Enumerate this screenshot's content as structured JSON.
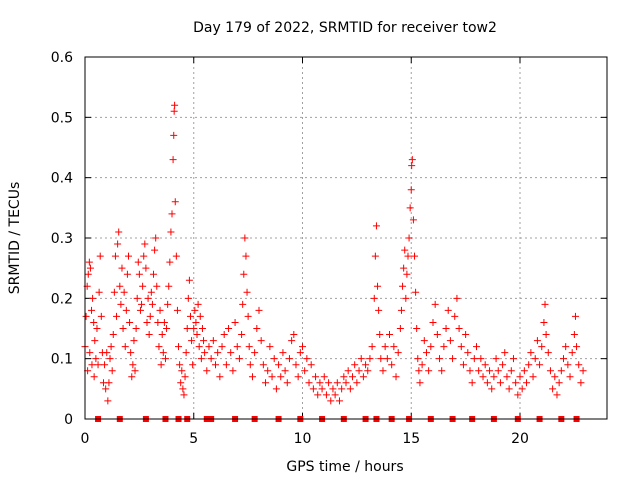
{
  "chart_data": {
    "type": "scatter",
    "title": "Day 179 of 2022, SRMTID for receiver tow2",
    "xlabel": "GPS time / hours",
    "ylabel": "SRMTID / TECUs",
    "xlim": [
      0,
      24
    ],
    "ylim": [
      0,
      0.6
    ],
    "xticks": [
      0,
      5,
      10,
      15,
      20
    ],
    "xtick_labels": [
      "0",
      "5",
      "10",
      "15",
      "20"
    ],
    "yticks": [
      0,
      0.1,
      0.2,
      0.3,
      0.4,
      0.5,
      0.6
    ],
    "ytick_labels": [
      "0",
      "0.1",
      "0.2",
      "0.3",
      "0.4",
      "0.5",
      "0.6"
    ],
    "grid": true,
    "marker": "+",
    "color": "#ff0000",
    "series": [
      {
        "name": "SRMTID",
        "points": [
          [
            0.0,
            0.12
          ],
          [
            0.05,
            0.17
          ],
          [
            0.1,
            0.22
          ],
          [
            0.12,
            0.08
          ],
          [
            0.15,
            0.24
          ],
          [
            0.2,
            0.26
          ],
          [
            0.22,
            0.11
          ],
          [
            0.25,
            0.25
          ],
          [
            0.3,
            0.18
          ],
          [
            0.32,
            0.09
          ],
          [
            0.35,
            0.2
          ],
          [
            0.4,
            0.16
          ],
          [
            0.42,
            0.07
          ],
          [
            0.45,
            0.13
          ],
          [
            0.5,
            0.1
          ],
          [
            0.55,
            0.15
          ],
          [
            0.6,
            0.09
          ],
          [
            0.65,
            0.21
          ],
          [
            0.7,
            0.27
          ],
          [
            0.75,
            0.17
          ],
          [
            0.8,
            0.11
          ],
          [
            0.85,
            0.06
          ],
          [
            0.9,
            0.09
          ],
          [
            0.95,
            0.05
          ],
          [
            1.0,
            0.11
          ],
          [
            1.05,
            0.03
          ],
          [
            1.1,
            0.06
          ],
          [
            1.15,
            0.1
          ],
          [
            1.2,
            0.12
          ],
          [
            1.25,
            0.08
          ],
          [
            1.3,
            0.14
          ],
          [
            1.35,
            0.21
          ],
          [
            1.4,
            0.27
          ],
          [
            1.45,
            0.17
          ],
          [
            1.5,
            0.29
          ],
          [
            1.55,
            0.31
          ],
          [
            1.6,
            0.22
          ],
          [
            1.65,
            0.19
          ],
          [
            1.7,
            0.25
          ],
          [
            1.75,
            0.15
          ],
          [
            1.8,
            0.21
          ],
          [
            1.85,
            0.12
          ],
          [
            1.9,
            0.18
          ],
          [
            1.95,
            0.24
          ],
          [
            2.0,
            0.27
          ],
          [
            2.05,
            0.16
          ],
          [
            2.1,
            0.11
          ],
          [
            2.15,
            0.07
          ],
          [
            2.2,
            0.09
          ],
          [
            2.25,
            0.13
          ],
          [
            2.3,
            0.08
          ],
          [
            2.35,
            0.15
          ],
          [
            2.4,
            0.2
          ],
          [
            2.45,
            0.26
          ],
          [
            2.5,
            0.24
          ],
          [
            2.55,
            0.18
          ],
          [
            2.6,
            0.19
          ],
          [
            2.65,
            0.22
          ],
          [
            2.7,
            0.27
          ],
          [
            2.75,
            0.29
          ],
          [
            2.8,
            0.25
          ],
          [
            2.85,
            0.16
          ],
          [
            2.9,
            0.2
          ],
          [
            2.95,
            0.14
          ],
          [
            3.0,
            0.17
          ],
          [
            3.05,
            0.21
          ],
          [
            3.1,
            0.19
          ],
          [
            3.15,
            0.24
          ],
          [
            3.2,
            0.28
          ],
          [
            3.25,
            0.3
          ],
          [
            3.3,
            0.22
          ],
          [
            3.35,
            0.16
          ],
          [
            3.4,
            0.12
          ],
          [
            3.45,
            0.18
          ],
          [
            3.5,
            0.09
          ],
          [
            3.55,
            0.14
          ],
          [
            3.6,
            0.11
          ],
          [
            3.65,
            0.16
          ],
          [
            3.7,
            0.1
          ],
          [
            3.75,
            0.15
          ],
          [
            3.8,
            0.19
          ],
          [
            3.85,
            0.22
          ],
          [
            3.9,
            0.26
          ],
          [
            3.95,
            0.31
          ],
          [
            4.0,
            0.34
          ],
          [
            4.05,
            0.43
          ],
          [
            4.08,
            0.47
          ],
          [
            4.1,
            0.51
          ],
          [
            4.12,
            0.52
          ],
          [
            4.15,
            0.36
          ],
          [
            4.2,
            0.27
          ],
          [
            4.25,
            0.18
          ],
          [
            4.3,
            0.12
          ],
          [
            4.35,
            0.09
          ],
          [
            4.4,
            0.06
          ],
          [
            4.45,
            0.08
          ],
          [
            4.5,
            0.05
          ],
          [
            4.55,
            0.04
          ],
          [
            4.6,
            0.07
          ],
          [
            4.65,
            0.11
          ],
          [
            4.7,
            0.15
          ],
          [
            4.75,
            0.2
          ],
          [
            4.8,
            0.23
          ],
          [
            4.85,
            0.17
          ],
          [
            4.9,
            0.13
          ],
          [
            4.95,
            0.09
          ],
          [
            5.0,
            0.15
          ],
          [
            5.05,
            0.18
          ],
          [
            5.1,
            0.16
          ],
          [
            5.15,
            0.14
          ],
          [
            5.2,
            0.19
          ],
          [
            5.25,
            0.12
          ],
          [
            5.3,
            0.17
          ],
          [
            5.35,
            0.1
          ],
          [
            5.4,
            0.15
          ],
          [
            5.45,
            0.13
          ],
          [
            5.5,
            0.11
          ],
          [
            5.6,
            0.08
          ],
          [
            5.7,
            0.12
          ],
          [
            5.8,
            0.1
          ],
          [
            5.9,
            0.13
          ],
          [
            6.0,
            0.09
          ],
          [
            6.1,
            0.11
          ],
          [
            6.2,
            0.07
          ],
          [
            6.3,
            0.12
          ],
          [
            6.4,
            0.14
          ],
          [
            6.5,
            0.09
          ],
          [
            6.6,
            0.15
          ],
          [
            6.7,
            0.11
          ],
          [
            6.8,
            0.08
          ],
          [
            6.9,
            0.16
          ],
          [
            7.0,
            0.12
          ],
          [
            7.1,
            0.1
          ],
          [
            7.2,
            0.14
          ],
          [
            7.25,
            0.19
          ],
          [
            7.3,
            0.24
          ],
          [
            7.35,
            0.3
          ],
          [
            7.4,
            0.27
          ],
          [
            7.45,
            0.21
          ],
          [
            7.5,
            0.17
          ],
          [
            7.55,
            0.12
          ],
          [
            7.6,
            0.09
          ],
          [
            7.7,
            0.07
          ],
          [
            7.8,
            0.11
          ],
          [
            7.9,
            0.15
          ],
          [
            8.0,
            0.18
          ],
          [
            8.1,
            0.13
          ],
          [
            8.2,
            0.09
          ],
          [
            8.3,
            0.06
          ],
          [
            8.4,
            0.08
          ],
          [
            8.5,
            0.12
          ],
          [
            8.6,
            0.07
          ],
          [
            8.7,
            0.1
          ],
          [
            8.8,
            0.05
          ],
          [
            8.9,
            0.09
          ],
          [
            9.0,
            0.07
          ],
          [
            9.1,
            0.11
          ],
          [
            9.2,
            0.08
          ],
          [
            9.3,
            0.06
          ],
          [
            9.4,
            0.1
          ],
          [
            9.5,
            0.13
          ],
          [
            9.6,
            0.14
          ],
          [
            9.7,
            0.09
          ],
          [
            9.8,
            0.07
          ],
          [
            9.9,
            0.11
          ],
          [
            10.0,
            0.12
          ],
          [
            10.1,
            0.08
          ],
          [
            10.2,
            0.1
          ],
          [
            10.3,
            0.06
          ],
          [
            10.4,
            0.09
          ],
          [
            10.5,
            0.05
          ],
          [
            10.6,
            0.07
          ],
          [
            10.7,
            0.04
          ],
          [
            10.8,
            0.06
          ],
          [
            10.9,
            0.05
          ],
          [
            11.0,
            0.07
          ],
          [
            11.1,
            0.04
          ],
          [
            11.2,
            0.06
          ],
          [
            11.3,
            0.03
          ],
          [
            11.4,
            0.05
          ],
          [
            11.5,
            0.04
          ],
          [
            11.6,
            0.06
          ],
          [
            11.7,
            0.03
          ],
          [
            11.8,
            0.05
          ],
          [
            11.9,
            0.07
          ],
          [
            12.0,
            0.06
          ],
          [
            12.1,
            0.08
          ],
          [
            12.2,
            0.05
          ],
          [
            12.3,
            0.07
          ],
          [
            12.4,
            0.09
          ],
          [
            12.5,
            0.06
          ],
          [
            12.6,
            0.08
          ],
          [
            12.7,
            0.1
          ],
          [
            12.8,
            0.07
          ],
          [
            12.9,
            0.09
          ],
          [
            13.0,
            0.08
          ],
          [
            13.1,
            0.1
          ],
          [
            13.2,
            0.12
          ],
          [
            13.3,
            0.2
          ],
          [
            13.35,
            0.27
          ],
          [
            13.4,
            0.32
          ],
          [
            13.45,
            0.22
          ],
          [
            13.5,
            0.18
          ],
          [
            13.55,
            0.14
          ],
          [
            13.6,
            0.1
          ],
          [
            13.7,
            0.08
          ],
          [
            13.8,
            0.12
          ],
          [
            13.9,
            0.1
          ],
          [
            14.0,
            0.14
          ],
          [
            14.1,
            0.09
          ],
          [
            14.2,
            0.12
          ],
          [
            14.3,
            0.07
          ],
          [
            14.4,
            0.11
          ],
          [
            14.5,
            0.15
          ],
          [
            14.55,
            0.18
          ],
          [
            14.6,
            0.22
          ],
          [
            14.65,
            0.25
          ],
          [
            14.7,
            0.28
          ],
          [
            14.75,
            0.2
          ],
          [
            14.8,
            0.24
          ],
          [
            14.85,
            0.27
          ],
          [
            14.9,
            0.3
          ],
          [
            14.95,
            0.35
          ],
          [
            15.0,
            0.38
          ],
          [
            15.02,
            0.42
          ],
          [
            15.05,
            0.43
          ],
          [
            15.1,
            0.33
          ],
          [
            15.15,
            0.27
          ],
          [
            15.2,
            0.21
          ],
          [
            15.25,
            0.15
          ],
          [
            15.3,
            0.1
          ],
          [
            15.35,
            0.08
          ],
          [
            15.4,
            0.06
          ],
          [
            15.5,
            0.09
          ],
          [
            15.6,
            0.13
          ],
          [
            15.7,
            0.11
          ],
          [
            15.8,
            0.08
          ],
          [
            15.9,
            0.12
          ],
          [
            16.0,
            0.16
          ],
          [
            16.1,
            0.19
          ],
          [
            16.2,
            0.14
          ],
          [
            16.3,
            0.1
          ],
          [
            16.4,
            0.08
          ],
          [
            16.5,
            0.12
          ],
          [
            16.6,
            0.15
          ],
          [
            16.7,
            0.18
          ],
          [
            16.8,
            0.13
          ],
          [
            16.9,
            0.1
          ],
          [
            17.0,
            0.17
          ],
          [
            17.1,
            0.2
          ],
          [
            17.2,
            0.15
          ],
          [
            17.3,
            0.12
          ],
          [
            17.4,
            0.09
          ],
          [
            17.5,
            0.14
          ],
          [
            17.6,
            0.11
          ],
          [
            17.7,
            0.08
          ],
          [
            17.8,
            0.06
          ],
          [
            17.9,
            0.1
          ],
          [
            18.0,
            0.12
          ],
          [
            18.1,
            0.08
          ],
          [
            18.2,
            0.1
          ],
          [
            18.3,
            0.07
          ],
          [
            18.4,
            0.09
          ],
          [
            18.5,
            0.06
          ],
          [
            18.6,
            0.08
          ],
          [
            18.7,
            0.05
          ],
          [
            18.8,
            0.07
          ],
          [
            18.9,
            0.1
          ],
          [
            19.0,
            0.08
          ],
          [
            19.1,
            0.06
          ],
          [
            19.2,
            0.09
          ],
          [
            19.3,
            0.11
          ],
          [
            19.4,
            0.07
          ],
          [
            19.5,
            0.05
          ],
          [
            19.6,
            0.08
          ],
          [
            19.7,
            0.1
          ],
          [
            19.8,
            0.06
          ],
          [
            19.9,
            0.04
          ],
          [
            20.0,
            0.07
          ],
          [
            20.1,
            0.05
          ],
          [
            20.2,
            0.08
          ],
          [
            20.3,
            0.06
          ],
          [
            20.4,
            0.09
          ],
          [
            20.5,
            0.11
          ],
          [
            20.6,
            0.07
          ],
          [
            20.7,
            0.1
          ],
          [
            20.8,
            0.13
          ],
          [
            20.9,
            0.09
          ],
          [
            21.0,
            0.12
          ],
          [
            21.1,
            0.16
          ],
          [
            21.15,
            0.19
          ],
          [
            21.2,
            0.14
          ],
          [
            21.3,
            0.11
          ],
          [
            21.4,
            0.08
          ],
          [
            21.5,
            0.05
          ],
          [
            21.6,
            0.07
          ],
          [
            21.7,
            0.04
          ],
          [
            21.8,
            0.06
          ],
          [
            21.9,
            0.08
          ],
          [
            22.0,
            0.1
          ],
          [
            22.1,
            0.12
          ],
          [
            22.2,
            0.09
          ],
          [
            22.3,
            0.07
          ],
          [
            22.4,
            0.11
          ],
          [
            22.5,
            0.14
          ],
          [
            22.55,
            0.17
          ],
          [
            22.6,
            0.12
          ],
          [
            22.7,
            0.09
          ],
          [
            22.8,
            0.06
          ],
          [
            22.9,
            0.08
          ]
        ]
      }
    ],
    "gap_markers_y": 0,
    "gap_markers_x": [
      0.6,
      1.6,
      2.8,
      3.7,
      4.3,
      4.7,
      5.6,
      5.8,
      6.9,
      7.8,
      8.9,
      9.9,
      10.9,
      11.9,
      12.9,
      13.4,
      14.1,
      14.9,
      15.9,
      16.9,
      17.8,
      18.8,
      19.9,
      20.9,
      21.9,
      22.6
    ]
  }
}
